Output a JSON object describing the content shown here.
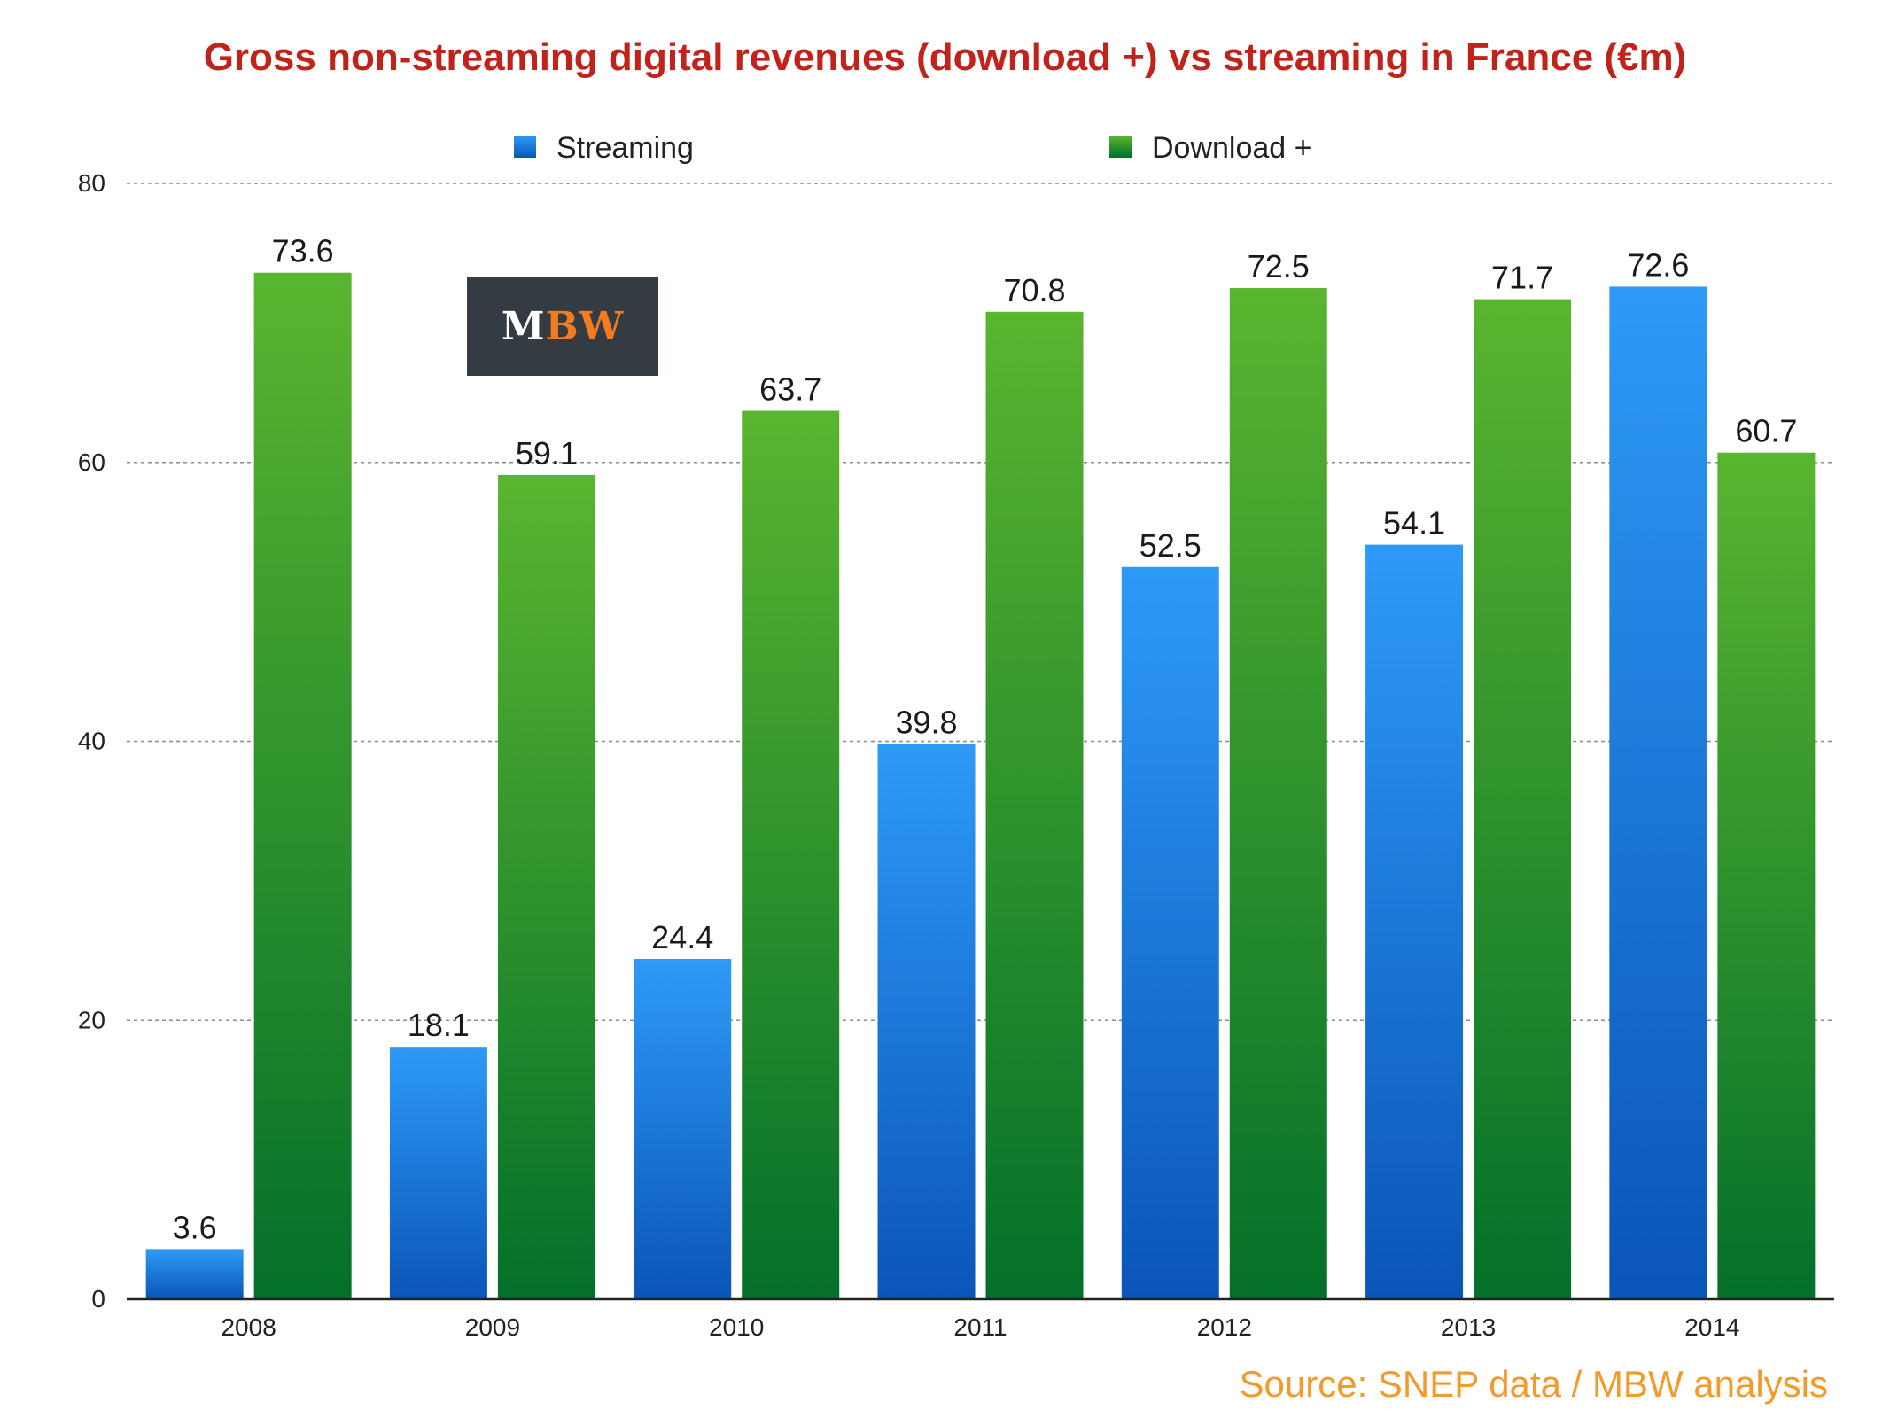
{
  "chart_data": {
    "type": "bar",
    "title": "Gross non-streaming digital revenues (download +) vs streaming in France (€m)",
    "xlabel": "",
    "ylabel": "",
    "ylim": [
      0,
      80
    ],
    "yticks": [
      0,
      20,
      40,
      60,
      80
    ],
    "grid": true,
    "legend_position": "top",
    "categories": [
      "2008",
      "2009",
      "2010",
      "2011",
      "2012",
      "2013",
      "2014"
    ],
    "series": [
      {
        "name": "Streaming",
        "values": [
          3.6,
          18.1,
          24.4,
          39.8,
          52.5,
          54.1,
          72.6
        ],
        "color": "#1a7fe0"
      },
      {
        "name": "Download +",
        "values": [
          73.6,
          59.1,
          63.7,
          70.8,
          72.5,
          71.7,
          60.7
        ],
        "color": "#2e9a2a"
      }
    ],
    "colors": {
      "streaming_top": "#2e9af7",
      "streaming_bottom": "#0a55b8",
      "download_top": "#5ab52f",
      "download_bottom": "#03702a",
      "title": "#c0231a",
      "source": "#f39a2b"
    }
  },
  "logo": {
    "text_m": "M",
    "text_bw": "BW"
  },
  "source_note": "Source: SNEP data  / MBW analysis"
}
